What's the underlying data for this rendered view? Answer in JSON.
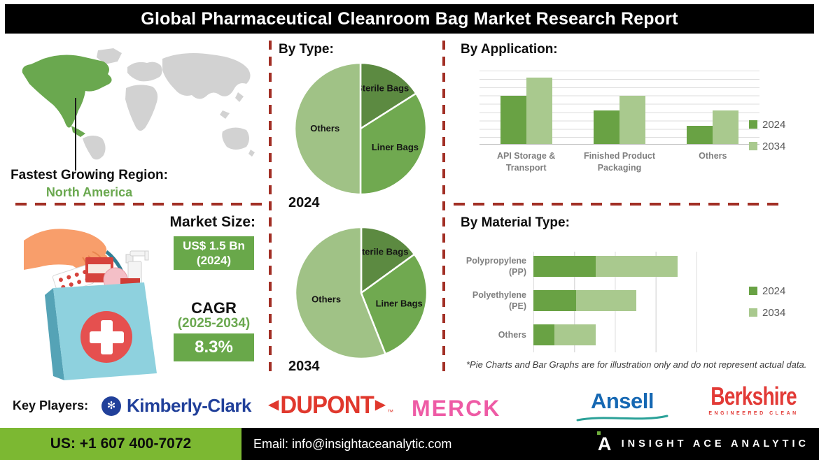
{
  "header": {
    "title": "Global Pharmaceutical Cleanroom Bag Market Research Report"
  },
  "region": {
    "label": "Fastest Growing Region:",
    "value": "North America"
  },
  "market": {
    "size_label": "Market Size:",
    "size_value": "US$ 1.5 Bn",
    "size_year": "(2024)",
    "cagr_label": "CAGR",
    "cagr_period": "(2025-2034)",
    "cagr_value": "8.3%",
    "box_color": "#69a84a"
  },
  "by_type": {
    "heading": "By Type:",
    "years": [
      "2024",
      "2034"
    ]
  },
  "by_application": {
    "heading": "By Application:"
  },
  "by_material": {
    "heading": "By Material Type:",
    "footnote": "*Pie Charts and Bar Graphs are for illustration only and do not represent actual data."
  },
  "key_players": {
    "label": "Key Players:",
    "kimberly_clark": "Kimberly-Clark",
    "kimberly_clark_icon": "✻",
    "dupont": "DUPONT",
    "dupont_tm": "™",
    "merck": "MERCK",
    "ansell": "Ansell",
    "berkshire": "Berkshire",
    "berkshire_tagline": "ENGINEERED CLEAN"
  },
  "footer": {
    "phone": "US: +1 607 400-7072",
    "email": "Email: info@insightaceanalytic.com",
    "brand": "INSIGHT ACE ANALYTIC",
    "brand_glyph": "A",
    "phone_bg": "#7cb832"
  },
  "colors": {
    "dashed_line": "#a22f25",
    "series_2024": "#69a244",
    "series_2034": "#a9c98e",
    "map_region": "#6aa84f",
    "map_land": "#d2d2d2"
  },
  "chart_data": [
    {
      "type": "pie",
      "id": "pie-2024",
      "title": "By Type - 2024",
      "labels": [
        "Sterile Bags",
        "Liner Bags",
        "Others"
      ],
      "values": [
        16,
        34,
        50
      ],
      "colors": [
        "#5c8a41",
        "#70a950",
        "#a0c286"
      ],
      "note": "illustrative only"
    },
    {
      "type": "pie",
      "id": "pie-2034",
      "title": "By Type - 2034",
      "labels": [
        "Sterile Bags",
        "Liner Bags",
        "Others"
      ],
      "values": [
        15,
        29,
        56
      ],
      "colors": [
        "#5c8a41",
        "#70a950",
        "#a0c286"
      ],
      "note": "illustrative only"
    },
    {
      "type": "bar",
      "id": "by-application",
      "title": "By Application",
      "orientation": "vertical",
      "categories": [
        "API Storage &\nTransport",
        "Finished Product\nPackaging",
        "Others"
      ],
      "series": [
        {
          "name": "2024",
          "values": [
            6.5,
            4.5,
            2.5
          ],
          "color": "#69a244"
        },
        {
          "name": "2034",
          "values": [
            9,
            6.5,
            4.5
          ],
          "color": "#a9c98e"
        }
      ],
      "ylim": [
        0,
        10
      ],
      "grid": true,
      "legend_position": "right",
      "note": "illustrative only"
    },
    {
      "type": "bar",
      "id": "by-material",
      "title": "By Material Type",
      "orientation": "horizontal",
      "stacked": true,
      "categories": [
        "Polypropylene\n(PP)",
        "Polyethylene (PE)",
        "Others"
      ],
      "series": [
        {
          "name": "2024",
          "values": [
            38,
            26,
            13
          ],
          "color": "#69a244"
        },
        {
          "name": "2034",
          "values": [
            50,
            37,
            25
          ],
          "color": "#a9c98e"
        }
      ],
      "xlim": [
        0,
        100
      ],
      "grid": true,
      "legend_position": "right",
      "note": "illustrative only"
    }
  ]
}
